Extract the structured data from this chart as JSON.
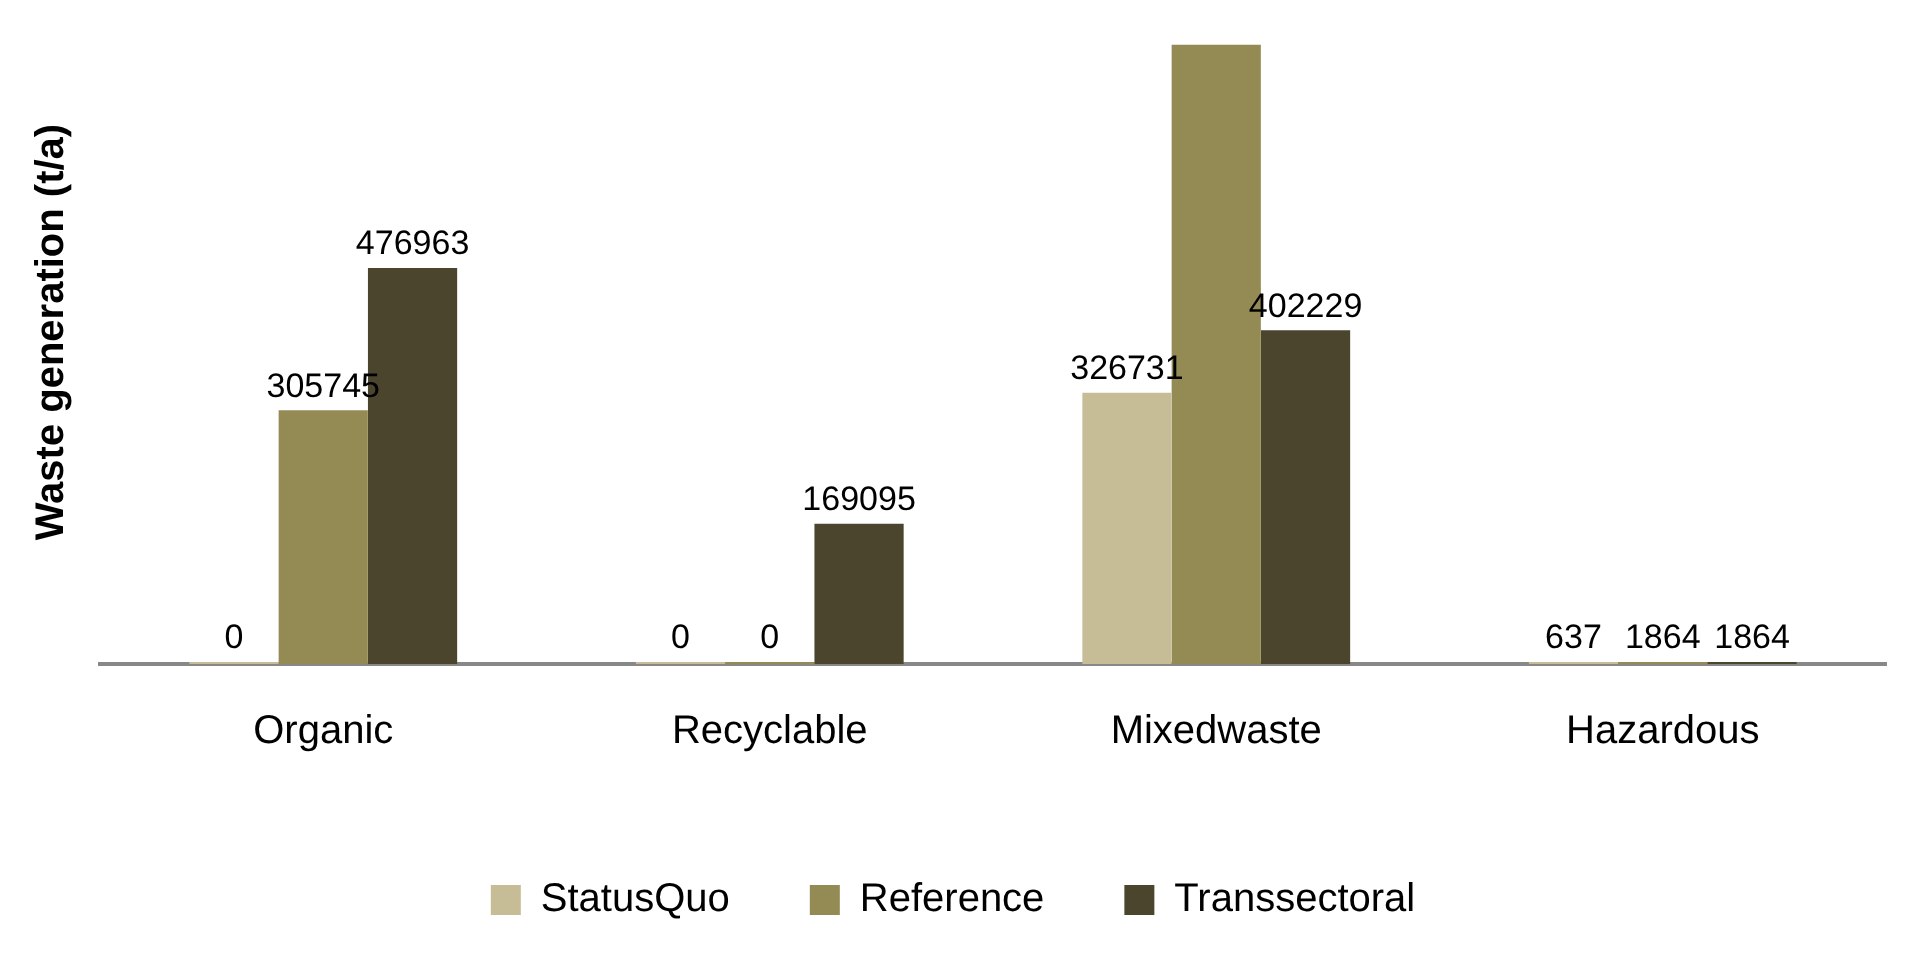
{
  "chart_data": {
    "type": "bar",
    "ylabel": "Waste generation (t/a)",
    "categories": [
      "Organic",
      "Recyclable",
      "Mixedwaste",
      "Hazardous"
    ],
    "series": [
      {
        "name": "StatusQuo",
        "color": "#c6bd96",
        "values": [
          0,
          0,
          326731,
          637
        ],
        "value_labels": [
          "0",
          "0",
          "326731",
          "637"
        ]
      },
      {
        "name": "Reference",
        "color": "#948b54",
        "values": [
          305745,
          0,
          746000,
          1864
        ],
        "value_labels": [
          "305745",
          "0",
          null,
          "1864"
        ]
      },
      {
        "name": "Transsectoral",
        "color": "#4a452c",
        "values": [
          476963,
          169095,
          402229,
          1864
        ],
        "value_labels": [
          "476963",
          "169095",
          "402229",
          "1864"
        ]
      }
    ],
    "legend": "bottom",
    "grid": false,
    "tick_labels": "x"
  }
}
